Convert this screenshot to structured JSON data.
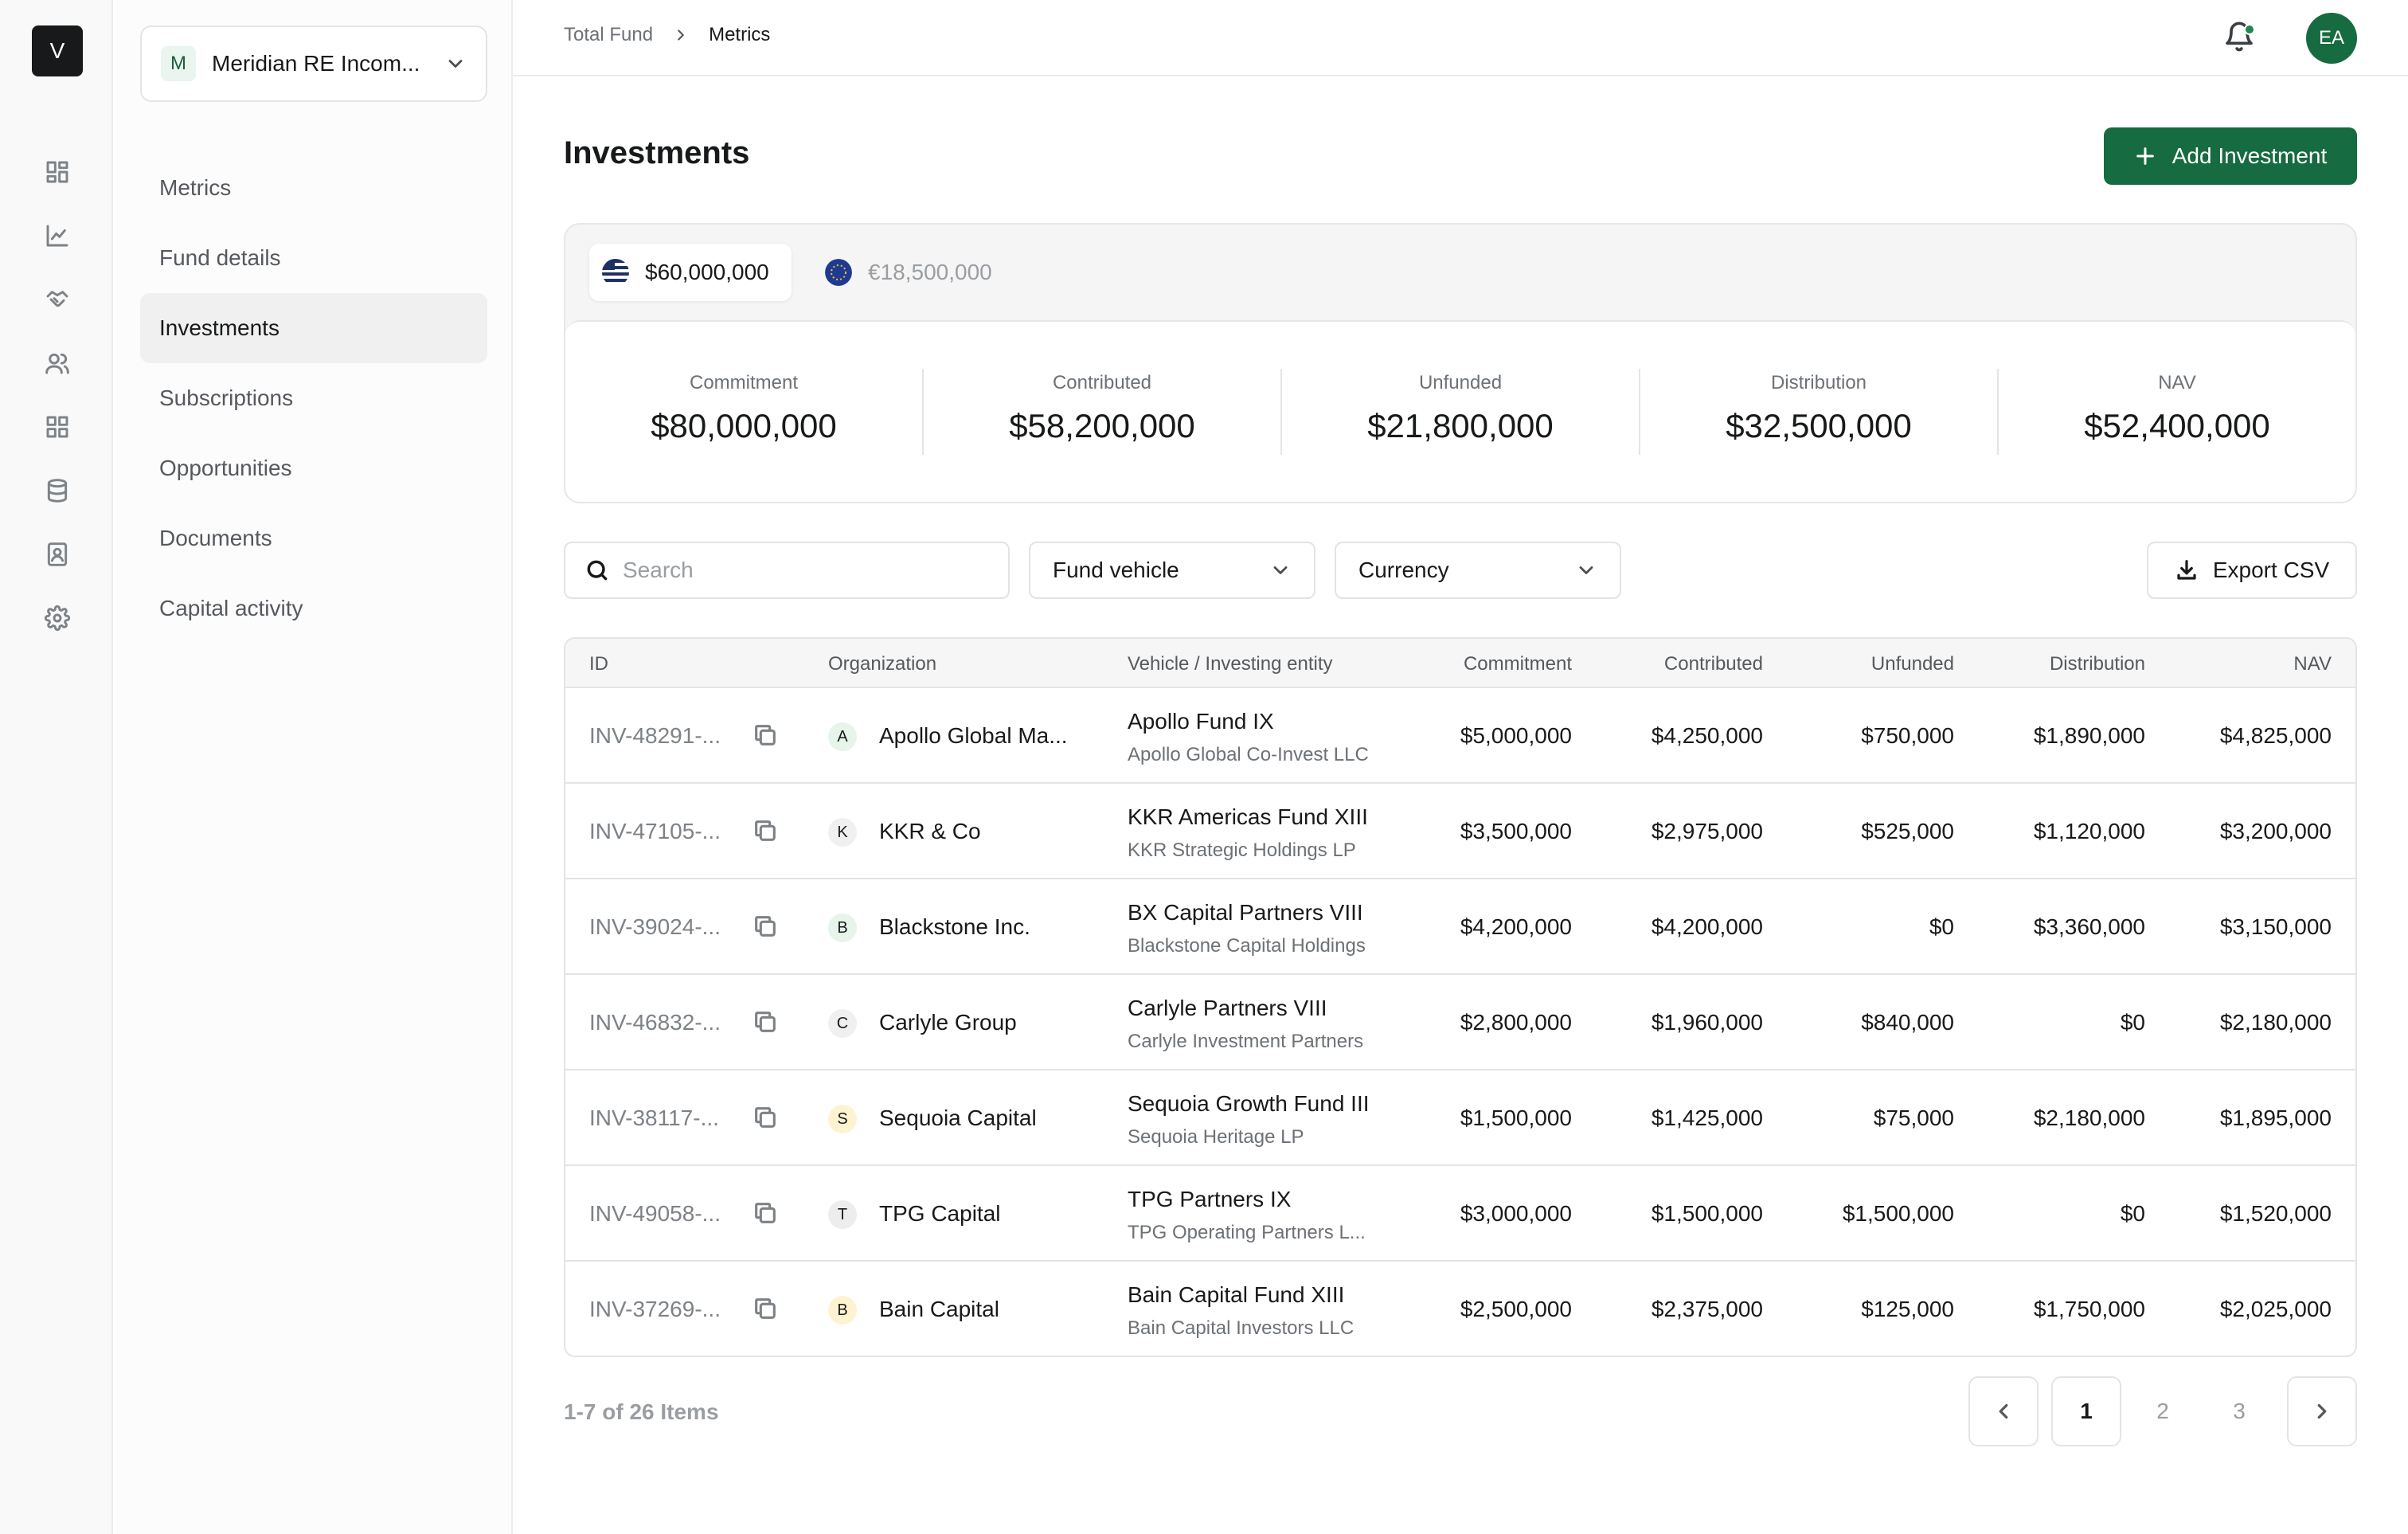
{
  "app": {
    "logo_letter": "V"
  },
  "fund_selector": {
    "initial": "M",
    "name": "Meridian RE Incom..."
  },
  "sidebar": {
    "items": [
      {
        "label": "Metrics"
      },
      {
        "label": "Fund details"
      },
      {
        "label": "Investments"
      },
      {
        "label": "Subscriptions"
      },
      {
        "label": "Opportunities"
      },
      {
        "label": "Documents"
      },
      {
        "label": "Capital activity"
      }
    ],
    "active": "Investments"
  },
  "rail_icons": [
    "dashboard-icon",
    "chart-line-icon",
    "handshake-icon",
    "users-icon",
    "grid-icon",
    "database-icon",
    "contacts-book-icon",
    "settings-icon"
  ],
  "breadcrumb": {
    "root": "Total Fund",
    "current": "Metrics"
  },
  "user": {
    "initials": "EA",
    "notification_dot_color": "#1b8a4a"
  },
  "page": {
    "title": "Investments",
    "add_button": "Add Investment"
  },
  "currency_tabs": [
    {
      "label": "$60,000,000",
      "flag": "us-flag-icon",
      "active": true
    },
    {
      "label": "€18,500,000",
      "flag": "eu-flag-icon",
      "active": false
    }
  ],
  "metrics": [
    {
      "label": "Commitment",
      "value": "$80,000,000"
    },
    {
      "label": "Contributed",
      "value": "$58,200,000"
    },
    {
      "label": "Unfunded",
      "value": "$21,800,000"
    },
    {
      "label": "Distribution",
      "value": "$32,500,000"
    },
    {
      "label": "NAV",
      "value": "$52,400,000"
    }
  ],
  "filters": {
    "search_placeholder": "Search",
    "fund_vehicle": "Fund vehicle",
    "currency": "Currency",
    "export": "Export CSV"
  },
  "table": {
    "headers": {
      "id": "ID",
      "organization": "Organization",
      "vehicle": "Vehicle / Investing entity",
      "commitment": "Commitment",
      "contributed": "Contributed",
      "unfunded": "Unfunded",
      "distribution": "Distribution",
      "nav": "NAV"
    },
    "rows": [
      {
        "id": "INV-48291-...",
        "org_initial": "A",
        "org_color": "#e6f4ea",
        "organization": "Apollo Global Ma...",
        "vehicle": "Apollo Fund IX",
        "entity": "Apollo Global Co-Invest LLC",
        "commitment": "$5,000,000",
        "contributed": "$4,250,000",
        "unfunded": "$750,000",
        "distribution": "$1,890,000",
        "nav": "$4,825,000"
      },
      {
        "id": "INV-47105-...",
        "org_initial": "K",
        "org_color": "#f0f0f0",
        "organization": "KKR & Co",
        "vehicle": "KKR Americas Fund XIII",
        "entity": "KKR Strategic Holdings LP",
        "commitment": "$3,500,000",
        "contributed": "$2,975,000",
        "unfunded": "$525,000",
        "distribution": "$1,120,000",
        "nav": "$3,200,000"
      },
      {
        "id": "INV-39024-...",
        "org_initial": "B",
        "org_color": "#e6f4ea",
        "organization": "Blackstone Inc.",
        "vehicle": "BX Capital Partners VIII",
        "entity": "Blackstone Capital Holdings",
        "commitment": "$4,200,000",
        "contributed": "$4,200,000",
        "unfunded": "$0",
        "distribution": "$3,360,000",
        "nav": "$3,150,000"
      },
      {
        "id": "INV-46832-...",
        "org_initial": "C",
        "org_color": "#f0f0f0",
        "organization": "Carlyle Group",
        "vehicle": "Carlyle Partners VIII",
        "entity": "Carlyle Investment Partners",
        "commitment": "$2,800,000",
        "contributed": "$1,960,000",
        "unfunded": "$840,000",
        "distribution": "$0",
        "nav": "$2,180,000"
      },
      {
        "id": "INV-38117-...",
        "org_initial": "S",
        "org_color": "#fdf3d0",
        "organization": "Sequoia Capital",
        "vehicle": "Sequoia Growth Fund III",
        "entity": "Sequoia Heritage LP",
        "commitment": "$1,500,000",
        "contributed": "$1,425,000",
        "unfunded": "$75,000",
        "distribution": "$2,180,000",
        "nav": "$1,895,000"
      },
      {
        "id": "INV-49058-...",
        "org_initial": "T",
        "org_color": "#ededed",
        "organization": "TPG Capital",
        "vehicle": "TPG Partners IX",
        "entity": "TPG Operating Partners L...",
        "commitment": "$3,000,000",
        "contributed": "$1,500,000",
        "unfunded": "$1,500,000",
        "distribution": "$0",
        "nav": "$1,520,000"
      },
      {
        "id": "INV-37269-...",
        "org_initial": "B",
        "org_color": "#fdf3d0",
        "organization": "Bain Capital",
        "vehicle": "Bain Capital Fund XIII",
        "entity": "Bain Capital Investors LLC",
        "commitment": "$2,500,000",
        "contributed": "$2,375,000",
        "unfunded": "$125,000",
        "distribution": "$1,750,000",
        "nav": "$2,025,000"
      }
    ]
  },
  "pagination": {
    "info": "1-7 of 26 Items",
    "pages": [
      "1",
      "2",
      "3"
    ],
    "current": "1"
  },
  "colors": {
    "accent": "#166b40",
    "text": "#17191a",
    "muted": "#6c7176",
    "border": "#e3e4e6"
  }
}
